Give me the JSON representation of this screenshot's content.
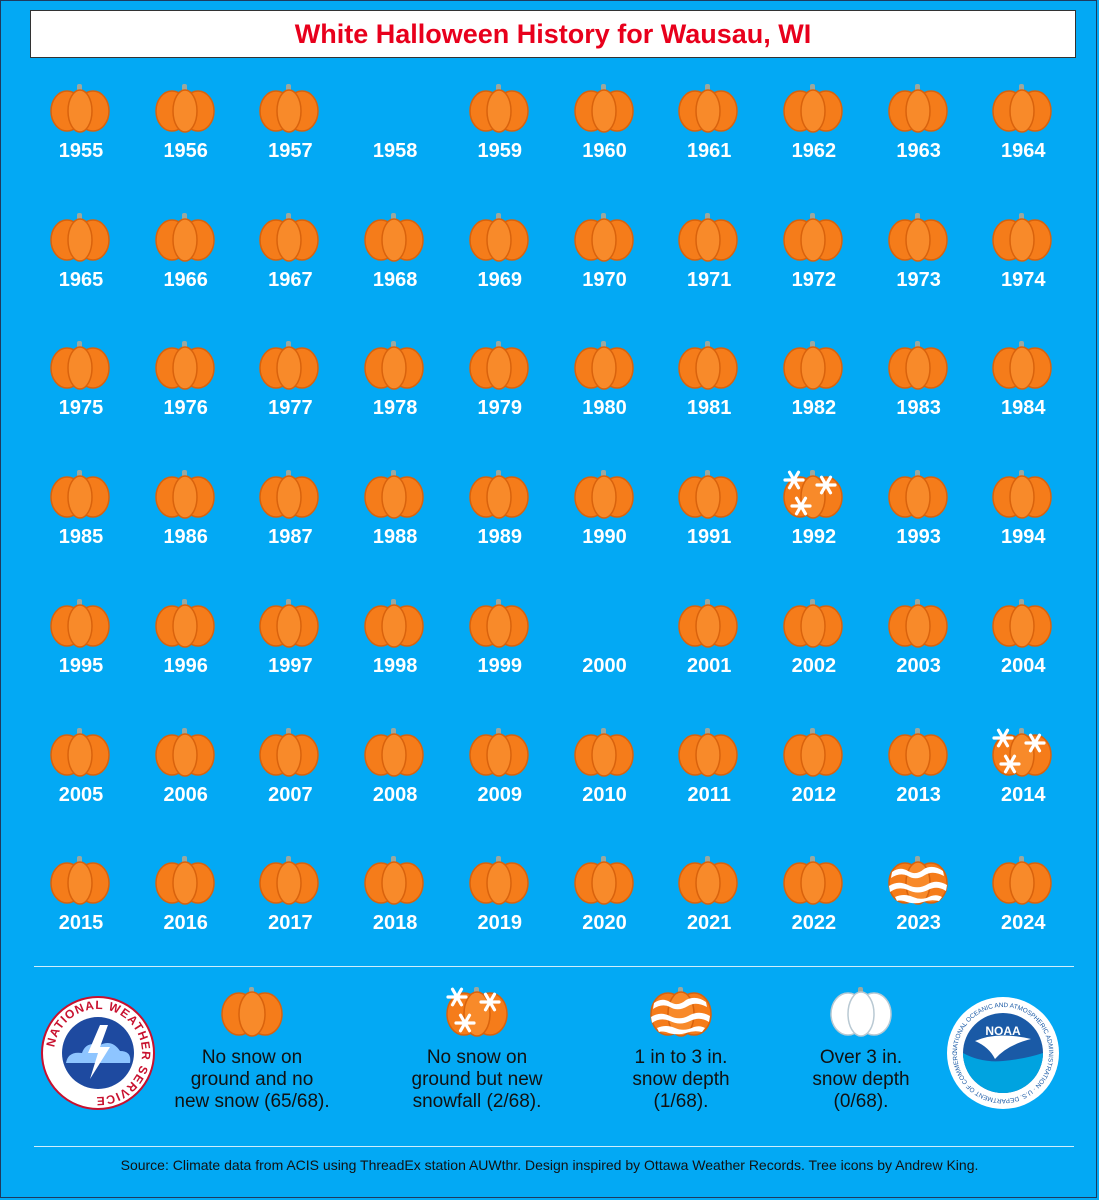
{
  "title": "White Halloween History for Wausau, WI",
  "chart_data": {
    "type": "table",
    "categories_legend": [
      {
        "key": "none",
        "label": "No snow on ground and no new snow (65/68)."
      },
      {
        "key": "new_snow",
        "label": "No snow on ground but new snowfall (2/68)."
      },
      {
        "key": "depth_1_3",
        "label": "1 in to 3 in. snow depth (1/68)."
      },
      {
        "key": "depth_over_3",
        "label": "Over 3 in. snow depth (0/68)."
      }
    ],
    "years": [
      {
        "year": "1955",
        "category": "none"
      },
      {
        "year": "1956",
        "category": "none"
      },
      {
        "year": "1957",
        "category": "none"
      },
      {
        "year": "1958",
        "category": "missing"
      },
      {
        "year": "1959",
        "category": "none"
      },
      {
        "year": "1960",
        "category": "none"
      },
      {
        "year": "1961",
        "category": "none"
      },
      {
        "year": "1962",
        "category": "none"
      },
      {
        "year": "1963",
        "category": "none"
      },
      {
        "year": "1964",
        "category": "none"
      },
      {
        "year": "1965",
        "category": "none"
      },
      {
        "year": "1966",
        "category": "none"
      },
      {
        "year": "1967",
        "category": "none"
      },
      {
        "year": "1968",
        "category": "none"
      },
      {
        "year": "1969",
        "category": "none"
      },
      {
        "year": "1970",
        "category": "none"
      },
      {
        "year": "1971",
        "category": "none"
      },
      {
        "year": "1972",
        "category": "none"
      },
      {
        "year": "1973",
        "category": "none"
      },
      {
        "year": "1974",
        "category": "none"
      },
      {
        "year": "1975",
        "category": "none"
      },
      {
        "year": "1976",
        "category": "none"
      },
      {
        "year": "1977",
        "category": "none"
      },
      {
        "year": "1978",
        "category": "none"
      },
      {
        "year": "1979",
        "category": "none"
      },
      {
        "year": "1980",
        "category": "none"
      },
      {
        "year": "1981",
        "category": "none"
      },
      {
        "year": "1982",
        "category": "none"
      },
      {
        "year": "1983",
        "category": "none"
      },
      {
        "year": "1984",
        "category": "none"
      },
      {
        "year": "1985",
        "category": "none"
      },
      {
        "year": "1986",
        "category": "none"
      },
      {
        "year": "1987",
        "category": "none"
      },
      {
        "year": "1988",
        "category": "none"
      },
      {
        "year": "1989",
        "category": "none"
      },
      {
        "year": "1990",
        "category": "none"
      },
      {
        "year": "1991",
        "category": "none"
      },
      {
        "year": "1992",
        "category": "new_snow"
      },
      {
        "year": "1993",
        "category": "none"
      },
      {
        "year": "1994",
        "category": "none"
      },
      {
        "year": "1995",
        "category": "none"
      },
      {
        "year": "1996",
        "category": "none"
      },
      {
        "year": "1997",
        "category": "none"
      },
      {
        "year": "1998",
        "category": "none"
      },
      {
        "year": "1999",
        "category": "none"
      },
      {
        "year": "2000",
        "category": "missing"
      },
      {
        "year": "2001",
        "category": "none"
      },
      {
        "year": "2002",
        "category": "none"
      },
      {
        "year": "2003",
        "category": "none"
      },
      {
        "year": "2004",
        "category": "none"
      },
      {
        "year": "2005",
        "category": "none"
      },
      {
        "year": "2006",
        "category": "none"
      },
      {
        "year": "2007",
        "category": "none"
      },
      {
        "year": "2008",
        "category": "none"
      },
      {
        "year": "2009",
        "category": "none"
      },
      {
        "year": "2010",
        "category": "none"
      },
      {
        "year": "2011",
        "category": "none"
      },
      {
        "year": "2012",
        "category": "none"
      },
      {
        "year": "2013",
        "category": "none"
      },
      {
        "year": "2014",
        "category": "new_snow"
      },
      {
        "year": "2015",
        "category": "none"
      },
      {
        "year": "2016",
        "category": "none"
      },
      {
        "year": "2017",
        "category": "none"
      },
      {
        "year": "2018",
        "category": "none"
      },
      {
        "year": "2019",
        "category": "none"
      },
      {
        "year": "2020",
        "category": "none"
      },
      {
        "year": "2021",
        "category": "none"
      },
      {
        "year": "2022",
        "category": "none"
      },
      {
        "year": "2023",
        "category": "depth_1_3"
      },
      {
        "year": "2024",
        "category": "none"
      }
    ]
  },
  "legend": {
    "none_line1": "No snow on",
    "none_line2": "ground and no",
    "none_line3": "new snow (65/68).",
    "new_line1": "No snow on",
    "new_line2": "ground but new",
    "new_line3": "snowfall (2/68).",
    "depth13_line1": "1 in to 3 in.",
    "depth13_line2": "snow depth",
    "depth13_line3": "(1/68).",
    "depth3_line1": "Over 3 in.",
    "depth3_line2": "snow depth",
    "depth3_line3": "(0/68)."
  },
  "logos": {
    "nws_text": "NATIONAL WEATHER SERVICE",
    "noaa_text": "NOAA",
    "noaa_ring_text": "NATIONAL OCEANIC AND ATMOSPHERIC ADMINISTRATION · U.S. DEPARTMENT OF COMMERCE"
  },
  "source": "Source: Climate data from ACIS using ThreadEx station AUWthr. Design inspired by Ottawa Weather Records. Tree icons by Andrew King.",
  "colors": {
    "background": "#03a9f4",
    "pumpkin": "#f57c1a",
    "pumpkin_dark": "#e0620a",
    "stem": "#9aa8a0",
    "title_red": "#e8001c"
  }
}
